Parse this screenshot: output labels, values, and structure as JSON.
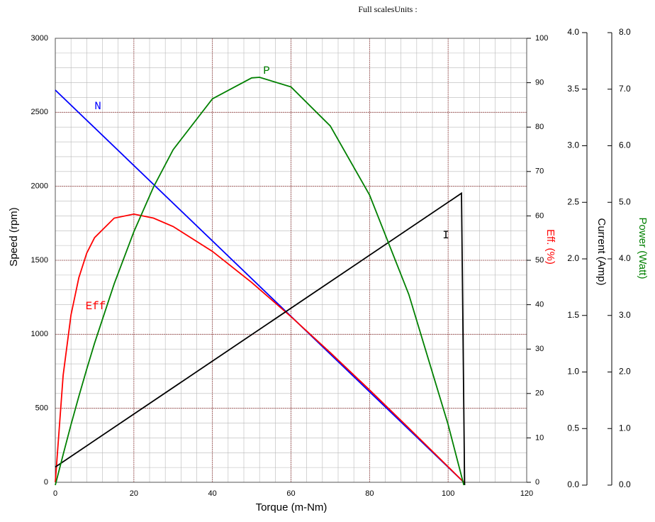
{
  "chart_data": {
    "type": "line",
    "title": "Full scalesUnits :",
    "x_label": "Torque (m-Nm)",
    "y_label": "Speed (rpm)",
    "y2_label": "Eff. (%)",
    "y3_label": "Current (Amp)",
    "y4_label": "Power (Watt)",
    "xlim": [
      0,
      120
    ],
    "xticks": [
      0,
      20,
      40,
      60,
      80,
      100,
      120
    ],
    "ylim": [
      0,
      3000
    ],
    "yticks": [
      0,
      500,
      1000,
      1500,
      2000,
      2500,
      3000
    ],
    "y2lim": [
      0,
      100
    ],
    "y2ticks": [
      0,
      10,
      20,
      30,
      40,
      50,
      60,
      70,
      80,
      90,
      100
    ],
    "y3lim": [
      0,
      4
    ],
    "y3ticks": [
      {
        "value": 0,
        "label": "0.0"
      },
      {
        "value": 0.5,
        "label": "0.5"
      },
      {
        "value": 1,
        "label": "1.0"
      },
      {
        "value": 1.5,
        "label": "1.5"
      },
      {
        "value": 2,
        "label": "2.0"
      },
      {
        "value": 2.5,
        "label": "2.5"
      },
      {
        "value": 3,
        "label": "3.0"
      },
      {
        "value": 3.5,
        "label": "3.5"
      },
      {
        "value": 4,
        "label": "4.0"
      }
    ],
    "y4lim": [
      0,
      8
    ],
    "y4ticks": [
      {
        "value": 0,
        "label": "0.0"
      },
      {
        "value": 1,
        "label": "1.0"
      },
      {
        "value": 2,
        "label": "2.0"
      },
      {
        "value": 3,
        "label": "3.0"
      },
      {
        "value": 4,
        "label": "4.0"
      },
      {
        "value": 5,
        "label": "5.0"
      },
      {
        "value": 6,
        "label": "6.0"
      },
      {
        "value": 7,
        "label": "7.0"
      },
      {
        "value": 8,
        "label": "8.0"
      }
    ],
    "grid": true,
    "minor_grid": {
      "x_step": 4,
      "y_step": 100
    },
    "series": [
      {
        "name": "N",
        "axis": "y",
        "color": "#0000ff",
        "x": [
          0,
          104
        ],
        "values": [
          2650,
          0
        ]
      },
      {
        "name": "Eff",
        "axis": "y2",
        "color": "#ff0000",
        "x": [
          0,
          2,
          4,
          6,
          8,
          10,
          15,
          20,
          25,
          30,
          40,
          50,
          60,
          70,
          80,
          90,
          100,
          104
        ],
        "values": [
          0,
          24.1,
          37.7,
          46.1,
          51.6,
          55.1,
          59.5,
          60.4,
          59.5,
          57.6,
          52.0,
          45.0,
          37.3,
          29.2,
          20.8,
          12.2,
          3.5,
          0
        ]
      },
      {
        "name": "I",
        "axis": "y3",
        "color": "#000000",
        "x": [
          0,
          103.4,
          104.2
        ],
        "values": [
          0.16,
          2.58,
          0
        ]
      },
      {
        "name": "P",
        "axis": "y4",
        "color": "#008000",
        "x": [
          0,
          2,
          4,
          6,
          8,
          10,
          15,
          20,
          25,
          30,
          40,
          50,
          52,
          60,
          70,
          80,
          90,
          100,
          104
        ],
        "values": [
          0,
          0.54,
          1.07,
          1.57,
          2.05,
          2.51,
          3.56,
          4.48,
          5.27,
          5.93,
          6.83,
          7.2,
          7.21,
          7.04,
          6.35,
          5.13,
          3.37,
          1.07,
          0
        ]
      }
    ]
  }
}
